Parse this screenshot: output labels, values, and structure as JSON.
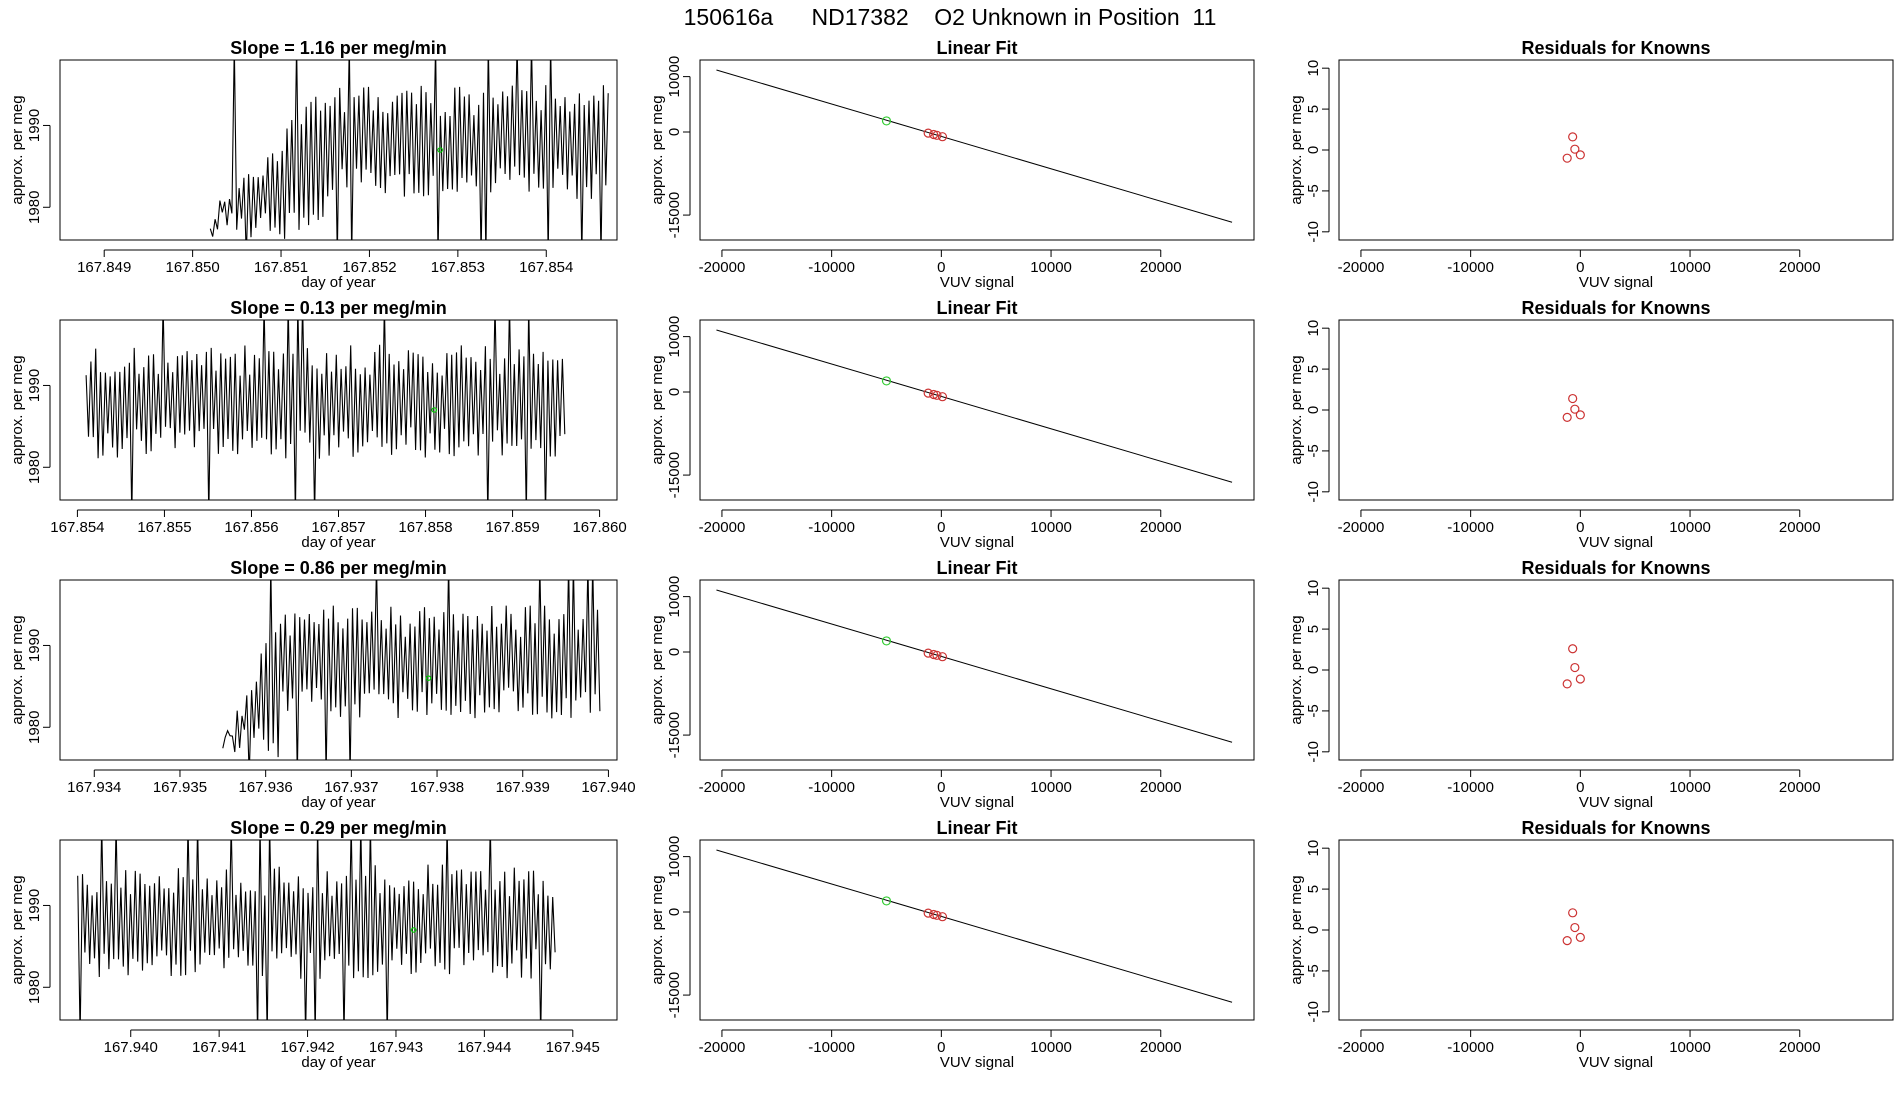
{
  "header": {
    "title": "150616a      ND17382    O2 Unknown in Position  11"
  },
  "chart_data": [
    {
      "type": "line",
      "panel": "row-1-timeseries",
      "title": "Slope =  1.16  per meg/min",
      "xlabel": "day of year",
      "ylabel": "approx. per meg",
      "xlim": [
        167.8485,
        167.8548
      ],
      "ylim": [
        1976,
        1998
      ],
      "xticks": [
        167.849,
        167.85,
        167.851,
        167.852,
        167.853,
        167.854
      ],
      "yticks": [
        1980,
        1990
      ],
      "signal": {
        "start": 167.8502,
        "end": 167.8547,
        "min": 1976,
        "max": 1998,
        "ramp_end": 167.8515,
        "ramp_low": 1977,
        "seed": 11
      },
      "highlight": {
        "x": 167.8528,
        "y": 1987,
        "color": "#00cc00"
      }
    },
    {
      "type": "scatter",
      "panel": "row-1-linear-fit",
      "title": "Linear Fit",
      "xlabel": "VUV signal",
      "ylabel": "approx. per meg",
      "xlim": [
        -22000,
        28500
      ],
      "ylim": [
        -19500,
        13000
      ],
      "xticks": [
        -20000,
        -10000,
        0,
        10000,
        20000
      ],
      "yticks": [
        10000,
        0,
        -15000
      ],
      "line": {
        "x": [
          -20500,
          26500
        ],
        "y": [
          11200,
          -16300
        ]
      },
      "knowns": {
        "x": [
          -1200,
          -700,
          -400,
          100
        ],
        "y": [
          -200,
          -450,
          -600,
          -850
        ],
        "color": "#cc3333"
      },
      "unknown": {
        "x": [
          -5000
        ],
        "y": [
          2000
        ],
        "color": "#33cc33"
      }
    },
    {
      "type": "scatter",
      "panel": "row-1-residuals",
      "title": "Residuals for Knowns",
      "xlabel": "VUV signal",
      "ylabel": "approx. per meg",
      "xlim": [
        -22000,
        28500
      ],
      "ylim": [
        -11,
        11
      ],
      "xticks": [
        -20000,
        -10000,
        0,
        10000,
        20000
      ],
      "yticks": [
        10,
        5,
        0,
        -5,
        -10
      ],
      "points": {
        "x": [
          -1200,
          -700,
          -500,
          0
        ],
        "y": [
          -1.0,
          1.6,
          0.1,
          -0.6
        ],
        "color": "#cc3333"
      }
    },
    {
      "type": "line",
      "panel": "row-2-timeseries",
      "title": "Slope =  0.13  per meg/min",
      "xlabel": "day of year",
      "ylabel": "approx. per meg",
      "xlim": [
        167.8538,
        167.8602
      ],
      "ylim": [
        1976,
        1998
      ],
      "xticks": [
        167.854,
        167.855,
        167.856,
        167.857,
        167.858,
        167.859,
        167.86
      ],
      "yticks": [
        1980,
        1990
      ],
      "signal": {
        "start": 167.8541,
        "end": 167.8596,
        "min": 1976,
        "max": 1998,
        "ramp_end": 167.8541,
        "ramp_low": 1977,
        "seed": 23
      },
      "highlight": {
        "x": 167.8581,
        "y": 1987,
        "color": "#00cc00"
      }
    },
    {
      "type": "scatter",
      "panel": "row-2-linear-fit",
      "title": "Linear Fit",
      "xlabel": "VUV signal",
      "ylabel": "approx. per meg",
      "xlim": [
        -22000,
        28500
      ],
      "ylim": [
        -19500,
        13000
      ],
      "xticks": [
        -20000,
        -10000,
        0,
        10000,
        20000
      ],
      "yticks": [
        10000,
        0,
        -15000
      ],
      "line": {
        "x": [
          -20500,
          26500
        ],
        "y": [
          11200,
          -16300
        ]
      },
      "knowns": {
        "x": [
          -1200,
          -700,
          -400,
          100
        ],
        "y": [
          -200,
          -450,
          -600,
          -850
        ],
        "color": "#cc3333"
      },
      "unknown": {
        "x": [
          -5000
        ],
        "y": [
          2000
        ],
        "color": "#33cc33"
      }
    },
    {
      "type": "scatter",
      "panel": "row-2-residuals",
      "title": "Residuals for Knowns",
      "xlabel": "VUV signal",
      "ylabel": "approx. per meg",
      "xlim": [
        -22000,
        28500
      ],
      "ylim": [
        -11,
        11
      ],
      "xticks": [
        -20000,
        -10000,
        0,
        10000,
        20000
      ],
      "yticks": [
        10,
        5,
        0,
        -5,
        -10
      ],
      "points": {
        "x": [
          -1200,
          -700,
          -500,
          0
        ],
        "y": [
          -0.9,
          1.4,
          0.1,
          -0.6
        ],
        "color": "#cc3333"
      }
    },
    {
      "type": "line",
      "panel": "row-3-timeseries",
      "title": "Slope =  0.86  per meg/min",
      "xlabel": "day of year",
      "ylabel": "approx. per meg",
      "xlim": [
        167.9336,
        167.9401
      ],
      "ylim": [
        1976,
        1998
      ],
      "xticks": [
        167.934,
        167.935,
        167.936,
        167.937,
        167.938,
        167.939,
        167.94
      ],
      "yticks": [
        1980,
        1990
      ],
      "signal": {
        "start": 167.9355,
        "end": 167.9399,
        "min": 1976,
        "max": 1998,
        "ramp_end": 167.9362,
        "ramp_low": 1976,
        "seed": 37
      },
      "highlight": {
        "x": 167.9379,
        "y": 1986,
        "color": "#00cc00"
      }
    },
    {
      "type": "scatter",
      "panel": "row-3-linear-fit",
      "title": "Linear Fit",
      "xlabel": "VUV signal",
      "ylabel": "approx. per meg",
      "xlim": [
        -22000,
        28500
      ],
      "ylim": [
        -19500,
        13000
      ],
      "xticks": [
        -20000,
        -10000,
        0,
        10000,
        20000
      ],
      "yticks": [
        10000,
        0,
        -15000
      ],
      "line": {
        "x": [
          -20500,
          26500
        ],
        "y": [
          11200,
          -16300
        ]
      },
      "knowns": {
        "x": [
          -1200,
          -700,
          -400,
          100
        ],
        "y": [
          -200,
          -450,
          -600,
          -850
        ],
        "color": "#cc3333"
      },
      "unknown": {
        "x": [
          -5000
        ],
        "y": [
          2000
        ],
        "color": "#33cc33"
      }
    },
    {
      "type": "scatter",
      "panel": "row-3-residuals",
      "title": "Residuals for Knowns",
      "xlabel": "VUV signal",
      "ylabel": "approx. per meg",
      "xlim": [
        -22000,
        28500
      ],
      "ylim": [
        -11,
        11
      ],
      "xticks": [
        -20000,
        -10000,
        0,
        10000,
        20000
      ],
      "yticks": [
        10,
        5,
        0,
        -5,
        -10
      ],
      "points": {
        "x": [
          -1200,
          -700,
          -500,
          0
        ],
        "y": [
          -1.7,
          2.6,
          0.3,
          -1.1
        ],
        "color": "#cc3333"
      }
    },
    {
      "type": "line",
      "panel": "row-4-timeseries",
      "title": "Slope =  0.29  per meg/min",
      "xlabel": "day of year",
      "ylabel": "approx. per meg",
      "xlim": [
        167.9392,
        167.9455
      ],
      "ylim": [
        1976,
        1998
      ],
      "xticks": [
        167.94,
        167.941,
        167.942,
        167.943,
        167.944,
        167.945
      ],
      "yticks": [
        1980,
        1990
      ],
      "signal": {
        "start": 167.9394,
        "end": 167.9448,
        "min": 1976,
        "max": 1998,
        "ramp_end": 167.9394,
        "ramp_low": 1977,
        "seed": 51
      },
      "highlight": {
        "x": 167.9432,
        "y": 1987,
        "color": "#00cc00"
      }
    },
    {
      "type": "scatter",
      "panel": "row-4-linear-fit",
      "title": "Linear Fit",
      "xlabel": "VUV signal",
      "ylabel": "approx. per meg",
      "xlim": [
        -22000,
        28500
      ],
      "ylim": [
        -19500,
        13000
      ],
      "xticks": [
        -20000,
        -10000,
        0,
        10000,
        20000
      ],
      "yticks": [
        10000,
        0,
        -15000
      ],
      "line": {
        "x": [
          -20500,
          26500
        ],
        "y": [
          11200,
          -16300
        ]
      },
      "knowns": {
        "x": [
          -1200,
          -700,
          -400,
          100
        ],
        "y": [
          -200,
          -450,
          -600,
          -850
        ],
        "color": "#cc3333"
      },
      "unknown": {
        "x": [
          -5000
        ],
        "y": [
          2000
        ],
        "color": "#33cc33"
      }
    },
    {
      "type": "scatter",
      "panel": "row-4-residuals",
      "title": "Residuals for Knowns",
      "xlabel": "VUV signal",
      "ylabel": "approx. per meg",
      "xlim": [
        -22000,
        28500
      ],
      "ylim": [
        -11,
        11
      ],
      "xticks": [
        -20000,
        -10000,
        0,
        10000,
        20000
      ],
      "yticks": [
        10,
        5,
        0,
        -5,
        -10
      ],
      "points": {
        "x": [
          -1200,
          -700,
          -500,
          0
        ],
        "y": [
          -1.3,
          2.1,
          0.3,
          -0.9
        ],
        "color": "#cc3333"
      }
    }
  ]
}
